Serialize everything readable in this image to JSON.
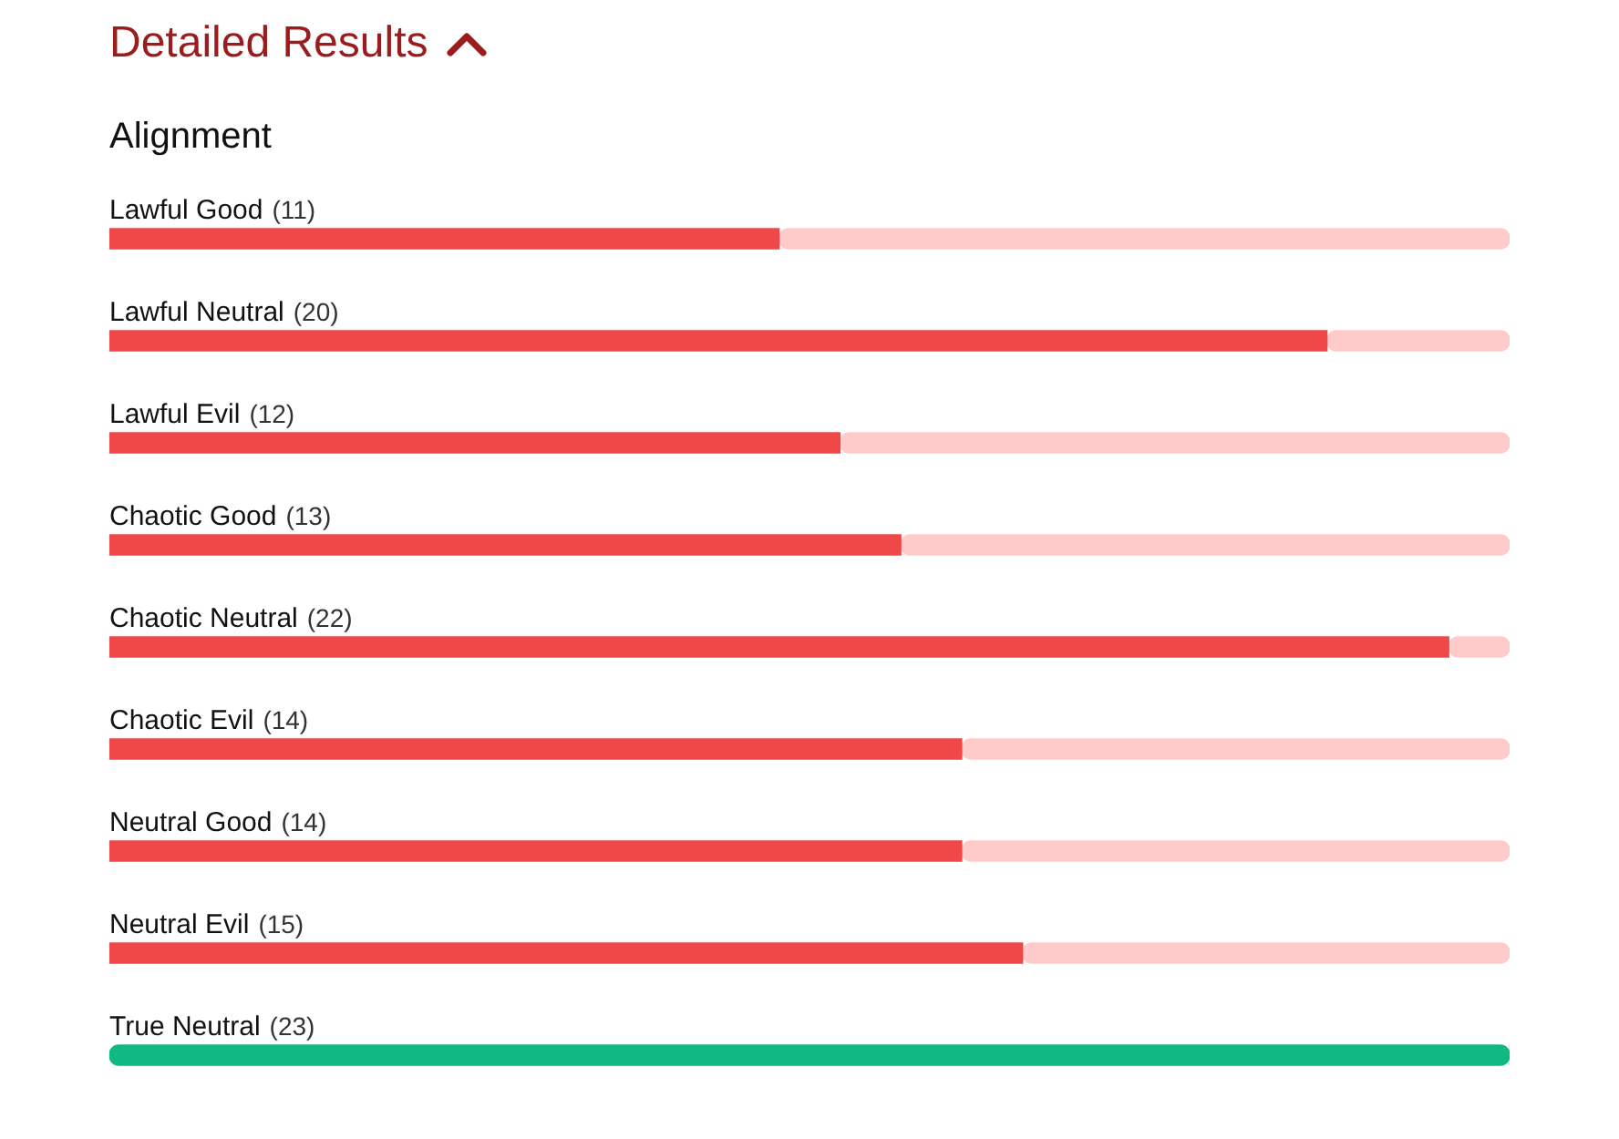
{
  "chart_data": {
    "type": "bar",
    "orientation": "horizontal",
    "stacked": true,
    "title": "Detailed Results",
    "subtitle": "Alignment",
    "categories": [
      "Lawful Good",
      "Lawful Neutral",
      "Lawful Evil",
      "Chaotic Good",
      "Chaotic Neutral",
      "Chaotic Evil",
      "Neutral Good",
      "Neutral Evil",
      "True Neutral"
    ],
    "series": [
      {
        "colors": [
          "#f04848",
          "#f04848",
          "#f04848",
          "#f04848",
          "#f04848",
          "#f04848",
          "#f04848",
          "#f04848",
          "#10b981"
        ],
        "values": [
          11,
          20,
          12,
          13,
          22,
          14,
          14,
          15,
          23
        ],
        "value_labels": [
          "(11)",
          "(20)",
          "(12)",
          "(13)",
          "(22)",
          "(14)",
          "(14)",
          "(15)",
          "(23)"
        ]
      },
      {
        "color": "#fecaca",
        "values": [
          12,
          3,
          11,
          10,
          1,
          9,
          9,
          8,
          0
        ]
      }
    ],
    "tick_labels": "y",
    "legend": false
  }
}
